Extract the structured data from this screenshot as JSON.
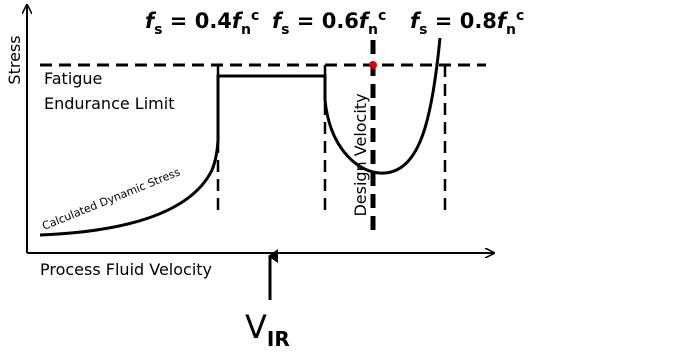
{
  "axes": {
    "y_label": "Stress",
    "x_label": "Process Fluid Velocity"
  },
  "limit_label": [
    "Fatigue",
    "Endurance Limit"
  ],
  "curve_label": "Calculated Dynamic Stress",
  "design_label": "Design Velocity",
  "frequency_labels": [
    {
      "f": "f",
      "s": "s",
      "eq": " = 0.4",
      "f2": "f",
      "n": "n",
      "c": "c"
    },
    {
      "f": "f",
      "s": "s",
      "eq": " = 0.6",
      "f2": "f",
      "n": "n",
      "c": "c"
    },
    {
      "f": "f",
      "s": "s",
      "eq": " = 0.8",
      "f2": "f",
      "n": "n",
      "c": "c"
    }
  ],
  "vir_label": {
    "v": "V",
    "sub": "IR"
  }
}
